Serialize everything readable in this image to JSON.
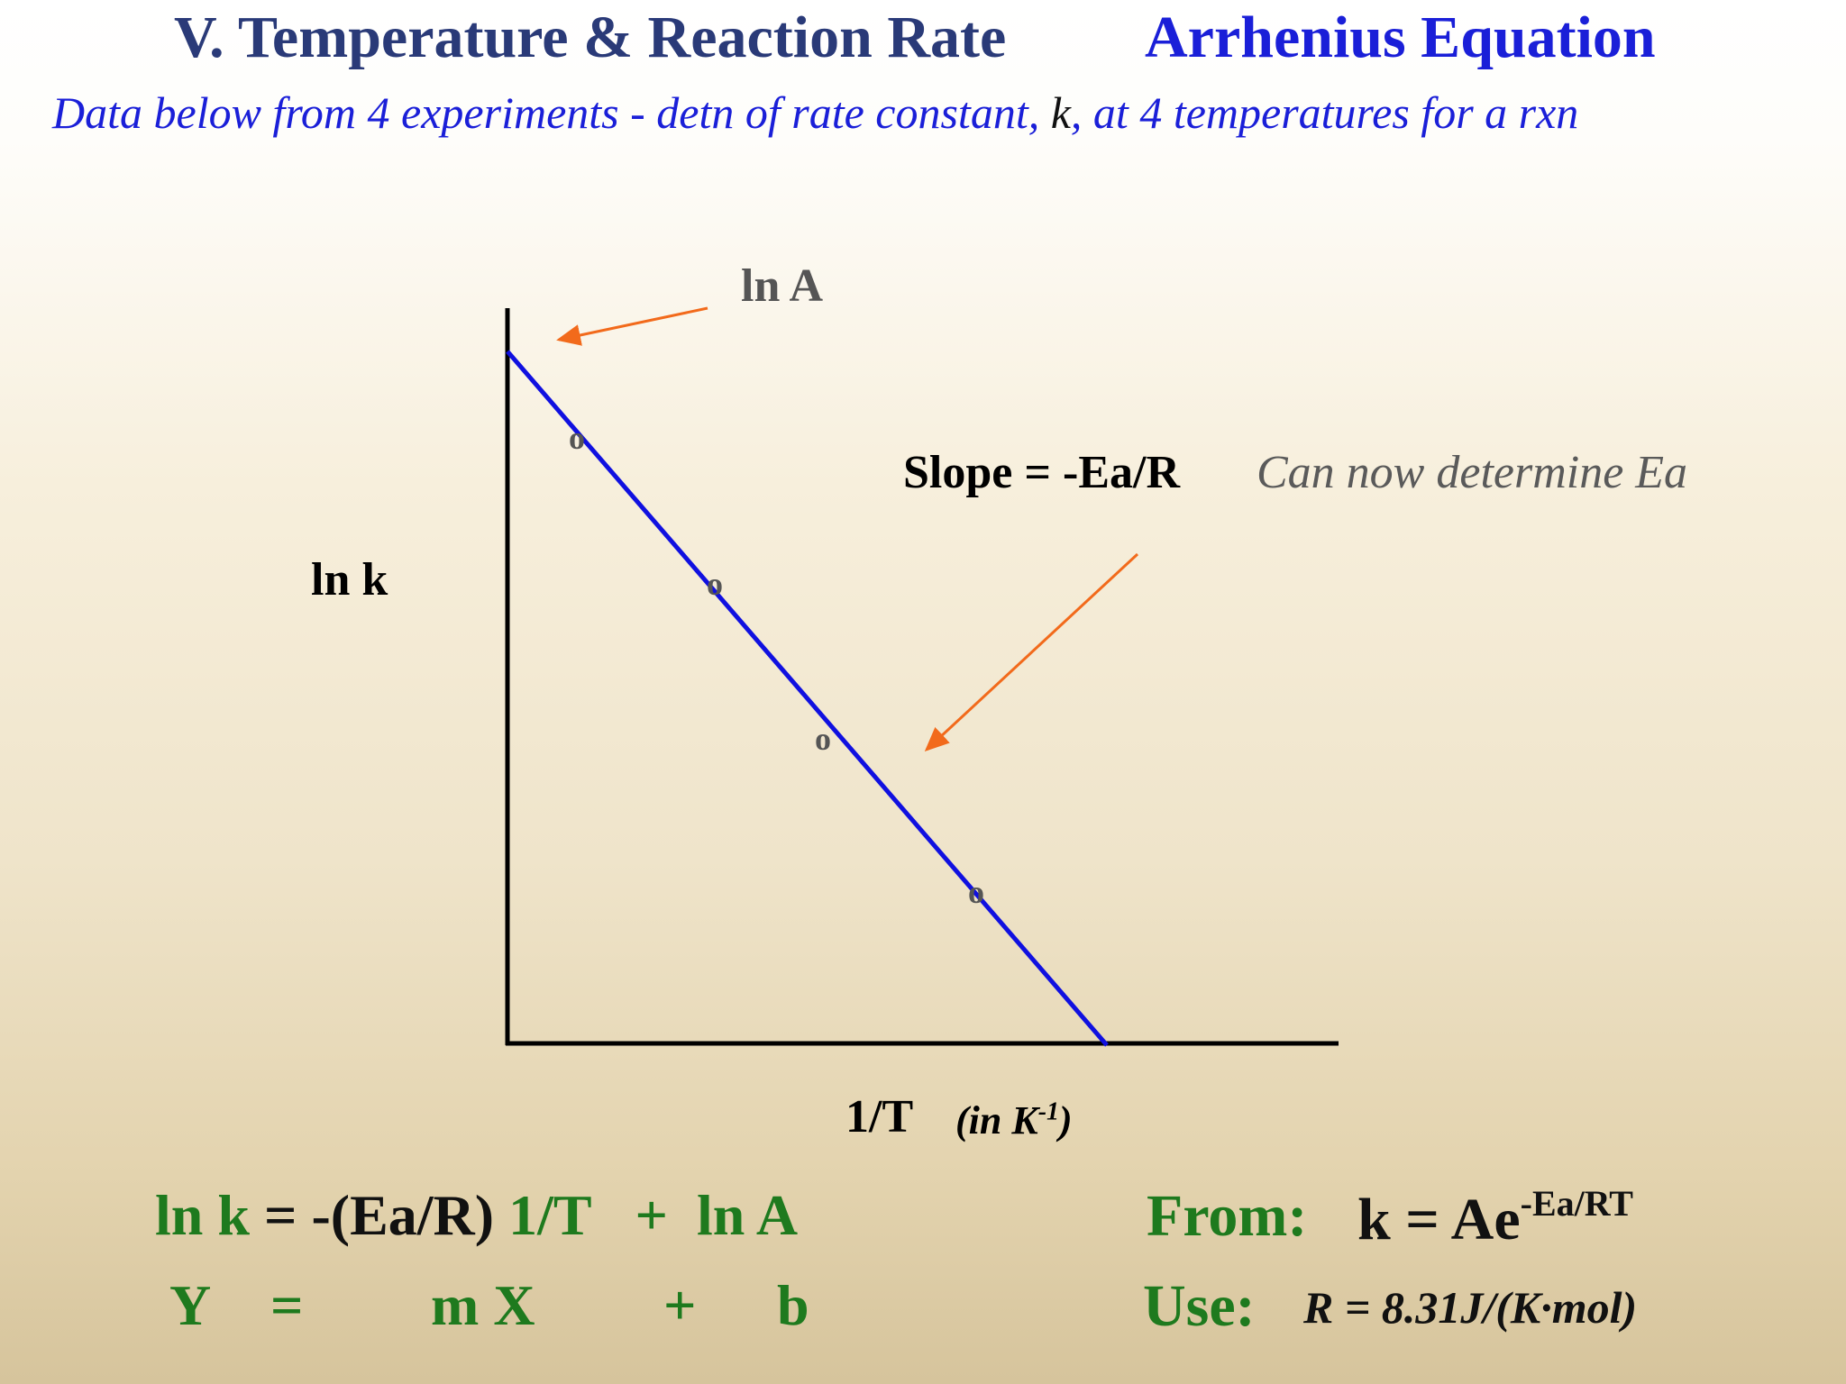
{
  "header": {
    "title_left": "V. Temperature & Reaction Rate",
    "title_right": "Arrhenius Equation",
    "subtitle_before_k": "Data below from 4 experiments - detn of rate constant, ",
    "subtitle_k": "k",
    "subtitle_after_k": ", at 4 temperatures for a rxn"
  },
  "diagram": {
    "intercept_label": "ln A",
    "slope_label": "Slope = -Ea/R",
    "slope_note": "Can now determine Ea",
    "y_axis_label": "ln k",
    "x_axis_label": "1/T",
    "x_axis_unit_prefix": "(in K",
    "x_axis_unit_exp": "-1",
    "x_axis_unit_suffix": ")",
    "point_marker": "o",
    "colors": {
      "line": "#1010e0",
      "arrow": "#f26a1b",
      "axis": "#000000"
    }
  },
  "equations": {
    "line1_lnk": "ln k",
    "line1_eq": "=",
    "line1_term": "-(Ea/R)",
    "line1_x": "1/T",
    "line1_plus": "+",
    "line1_b": "ln A",
    "line2": [
      "Y",
      "=",
      "m X",
      "+",
      "b"
    ],
    "from_label": "From:",
    "k_form_base": "k = Ae",
    "k_form_exp": "-Ea/RT",
    "use_label": "Use:",
    "r_value": "R = 8.31J/(K·mol)"
  }
}
